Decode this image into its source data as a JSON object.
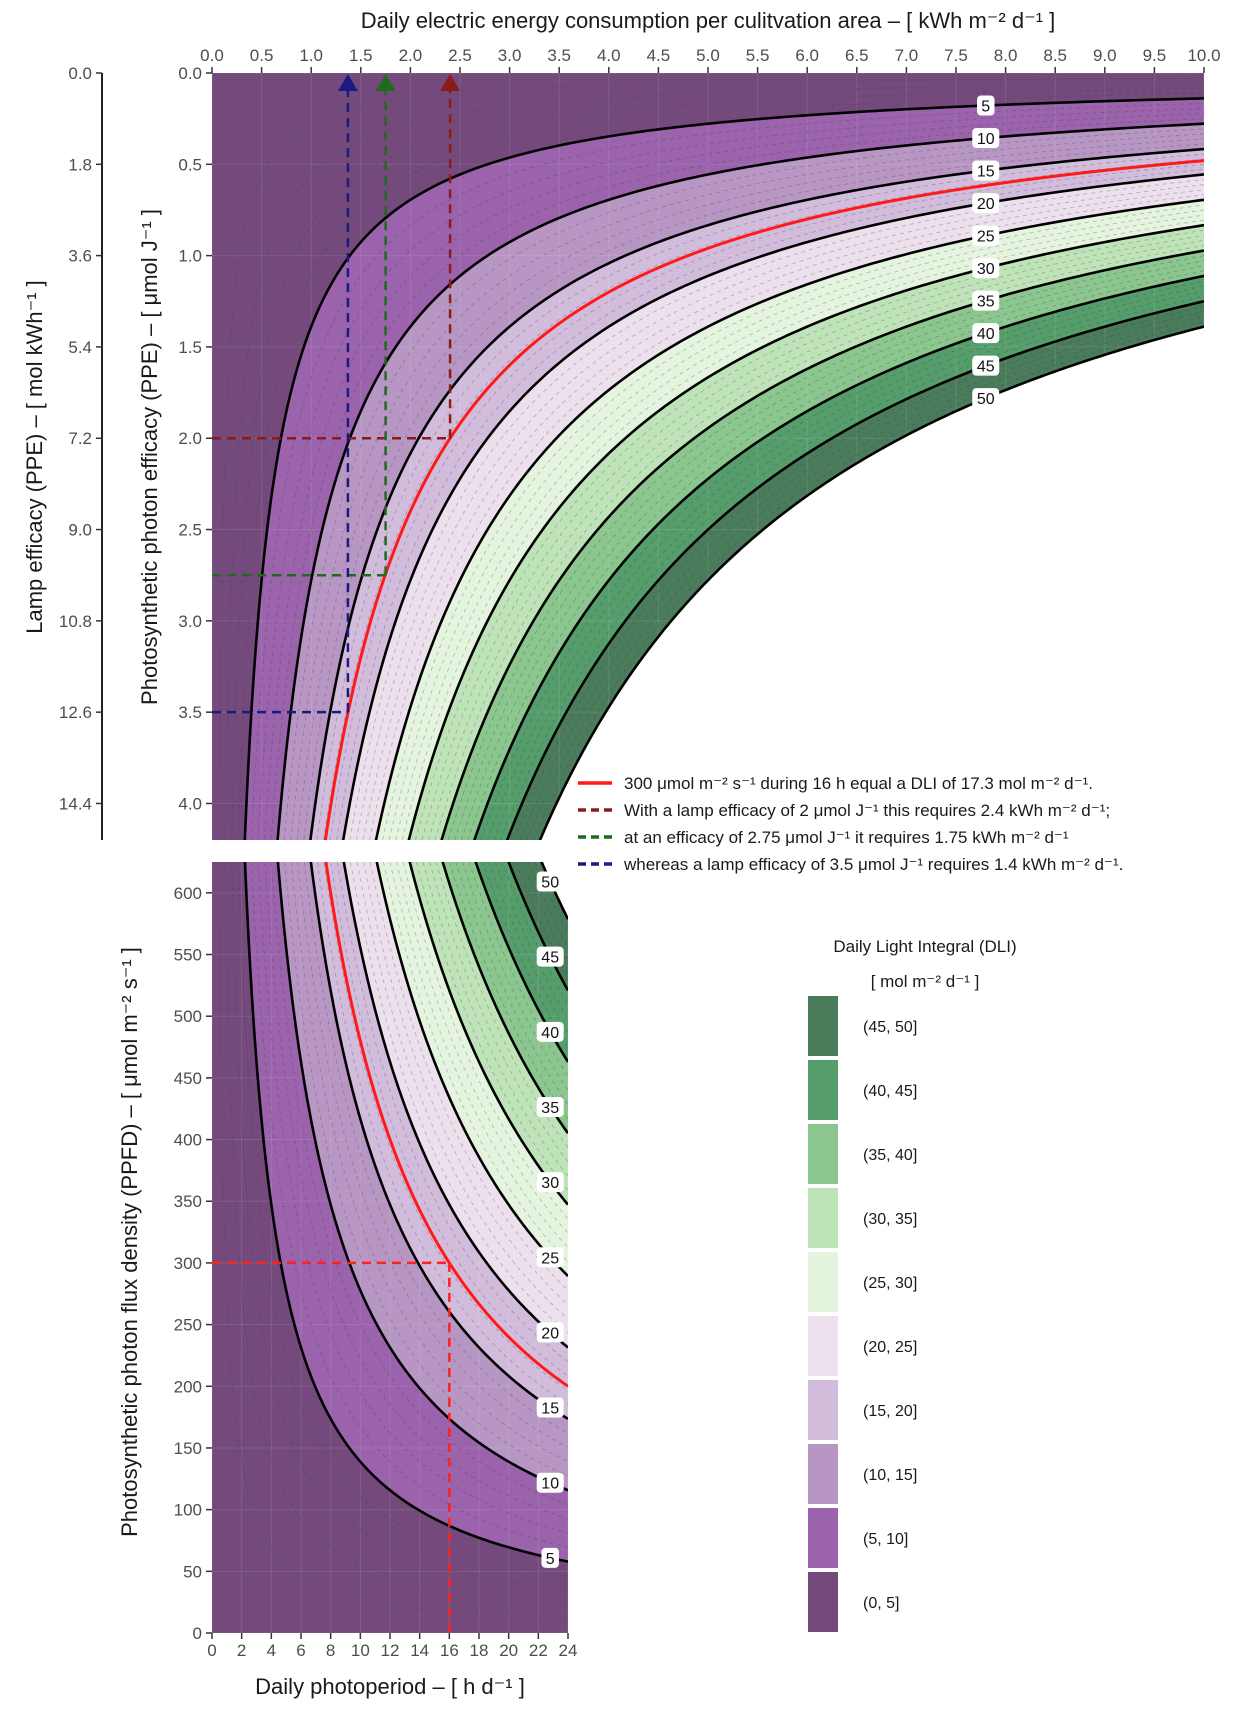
{
  "chart_data": [
    {
      "id": "top",
      "type": "contour",
      "xlabel": "Daily electric energy consumption per culitvation area –  [ kWh m⁻² d⁻¹ ]",
      "ylabel_inner": "Photosynthetic photon efficacy (PPE) – [ μmol J⁻¹ ]",
      "ylabel_outer": "Lamp efficacy (PPE) – [ mol kWh⁻¹ ]",
      "xlim": [
        0,
        10
      ],
      "ylim": [
        0,
        4.2
      ],
      "x_ticks": [
        "0.0",
        "0.5",
        "1.0",
        "1.5",
        "2.0",
        "2.5",
        "3.0",
        "3.5",
        "4.0",
        "4.5",
        "5.0",
        "5.5",
        "6.0",
        "6.5",
        "7.0",
        "7.5",
        "8.0",
        "8.5",
        "9.0",
        "9.5",
        "10.0"
      ],
      "y_ticks": [
        "0.0",
        "0.5",
        "1.0",
        "1.5",
        "2.0",
        "2.5",
        "3.0",
        "3.5",
        "4.0"
      ],
      "y_outer_ticks": [
        "0.0",
        "1.8",
        "3.6",
        "5.4",
        "7.2",
        "9.0",
        "10.8",
        "12.6",
        "14.4"
      ],
      "contour_levels": [
        5,
        10,
        15,
        20,
        25,
        30,
        35,
        40,
        45,
        50
      ],
      "contour_labels": [
        "5",
        "10",
        "15",
        "20",
        "25",
        "30",
        "35",
        "40",
        "45",
        "50"
      ],
      "red_line_dli": 17.28,
      "guides": [
        {
          "color": "#8b1a1a",
          "efficacy": 2.0,
          "energy": 2.4
        },
        {
          "color": "#1e6b1e",
          "efficacy": 2.75,
          "energy": 1.75
        },
        {
          "color": "#1a1a80",
          "efficacy": 3.5,
          "energy": 1.37
        }
      ]
    },
    {
      "id": "bottom",
      "type": "contour",
      "xlabel": "Daily photoperiod –  [ h d⁻¹ ]",
      "ylabel": "Photosynthetic photon flux density (PPFD) – [ μmol m⁻² s⁻¹ ]",
      "xlim": [
        0,
        24
      ],
      "ylim": [
        0,
        625
      ],
      "x_ticks": [
        "0",
        "2",
        "4",
        "6",
        "8",
        "10",
        "12",
        "14",
        "16",
        "18",
        "20",
        "22",
        "24"
      ],
      "y_ticks": [
        "0",
        "50",
        "100",
        "150",
        "200",
        "250",
        "300",
        "350",
        "400",
        "450",
        "500",
        "550",
        "600"
      ],
      "contour_levels": [
        5,
        10,
        15,
        20,
        25,
        30,
        35,
        40,
        45,
        50
      ],
      "contour_labels": [
        "5",
        "10",
        "15",
        "20",
        "25",
        "30",
        "35",
        "40",
        "45",
        "50"
      ],
      "red_line_dli": 17.28,
      "guide": {
        "ppfd": 300,
        "photoperiod": 16
      }
    }
  ],
  "legend": {
    "lines": [
      {
        "color": "#ff1a1a",
        "style": "solid",
        "text": "300 μmol m⁻² s⁻¹ during 16 h equal a DLI of 17.3 mol m⁻² d⁻¹."
      },
      {
        "color": "#8b1a1a",
        "style": "dashed",
        "text": "With a lamp efficacy of 2 μmol J⁻¹ this requires 2.4 kWh m⁻² d⁻¹;"
      },
      {
        "color": "#1e6b1e",
        "style": "dashed",
        "text": "at an efficacy of 2.75 μmol J⁻¹ it requires 1.75 kWh m⁻² d⁻¹"
      },
      {
        "color": "#1a1a80",
        "style": "dashed",
        "text": "whereas a lamp efficacy of 3.5 μmol J⁻¹ requires 1.4 kWh m⁻² d⁻¹."
      }
    ],
    "dli_title": "Daily Light Integral (DLI)",
    "dli_unit": "[ mol m⁻² d⁻¹ ]",
    "dli_bins": [
      {
        "label": "(45, 50]",
        "color": "#4a7c5c"
      },
      {
        "label": "(40, 45]",
        "color": "#569d6c"
      },
      {
        "label": "(35, 40]",
        "color": "#8ac68e"
      },
      {
        "label": "(30, 35]",
        "color": "#bfe3b8"
      },
      {
        "label": "(25, 30]",
        "color": "#e5f4df"
      },
      {
        "label": "(20, 25]",
        "color": "#ece0ec"
      },
      {
        "label": "(15, 20]",
        "color": "#d2bcdc"
      },
      {
        "label": "(10, 15]",
        "color": "#b796c4"
      },
      {
        "label": "(5, 10]",
        "color": "#9a63ac"
      },
      {
        "label": "(0, 5]",
        "color": "#744a7c"
      }
    ]
  }
}
